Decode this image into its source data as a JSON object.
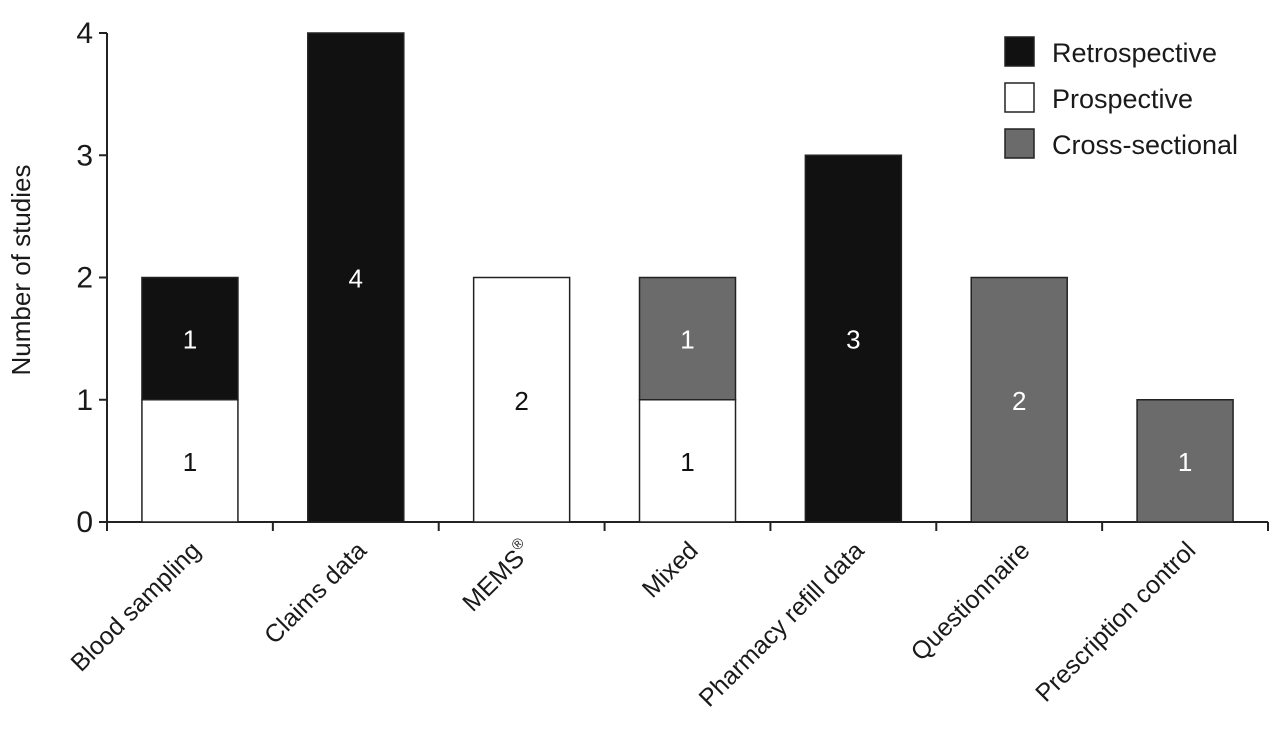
{
  "chart_data": {
    "type": "bar",
    "stacked": true,
    "ylabel": "Number of studies",
    "xlabel": "",
    "ylim": [
      0,
      4
    ],
    "yticks": [
      "0",
      "1",
      "2",
      "3",
      "4"
    ],
    "categories": [
      "Blood sampling",
      "Claims data",
      "MEMS",
      "Mixed",
      "Pharmacy refill data",
      "Questionnaire",
      "Prescription control"
    ],
    "category_superscripts": [
      "",
      "",
      "®",
      "",
      "",
      "",
      ""
    ],
    "series": [
      {
        "name": "Prospective",
        "color": "#ffffff",
        "label_color": "#111111",
        "values": [
          1,
          0,
          2,
          1,
          0,
          0,
          0
        ]
      },
      {
        "name": "Retrospective",
        "color": "#111111",
        "label_color": "#ffffff",
        "values": [
          1,
          4,
          0,
          0,
          3,
          0,
          0
        ]
      },
      {
        "name": "Cross-sectional",
        "color": "#6b6b6b",
        "label_color": "#ffffff",
        "values": [
          0,
          0,
          0,
          1,
          0,
          2,
          1
        ]
      }
    ],
    "stack_order": [
      "Prospective",
      "Retrospective",
      "Cross-sectional"
    ],
    "legend": {
      "position": "top-right",
      "entries": [
        {
          "label": "Retrospective",
          "color": "#111111"
        },
        {
          "label": "Prospective",
          "color": "#ffffff"
        },
        {
          "label": "Cross-sectional",
          "color": "#6b6b6b"
        }
      ]
    },
    "grid": false
  }
}
